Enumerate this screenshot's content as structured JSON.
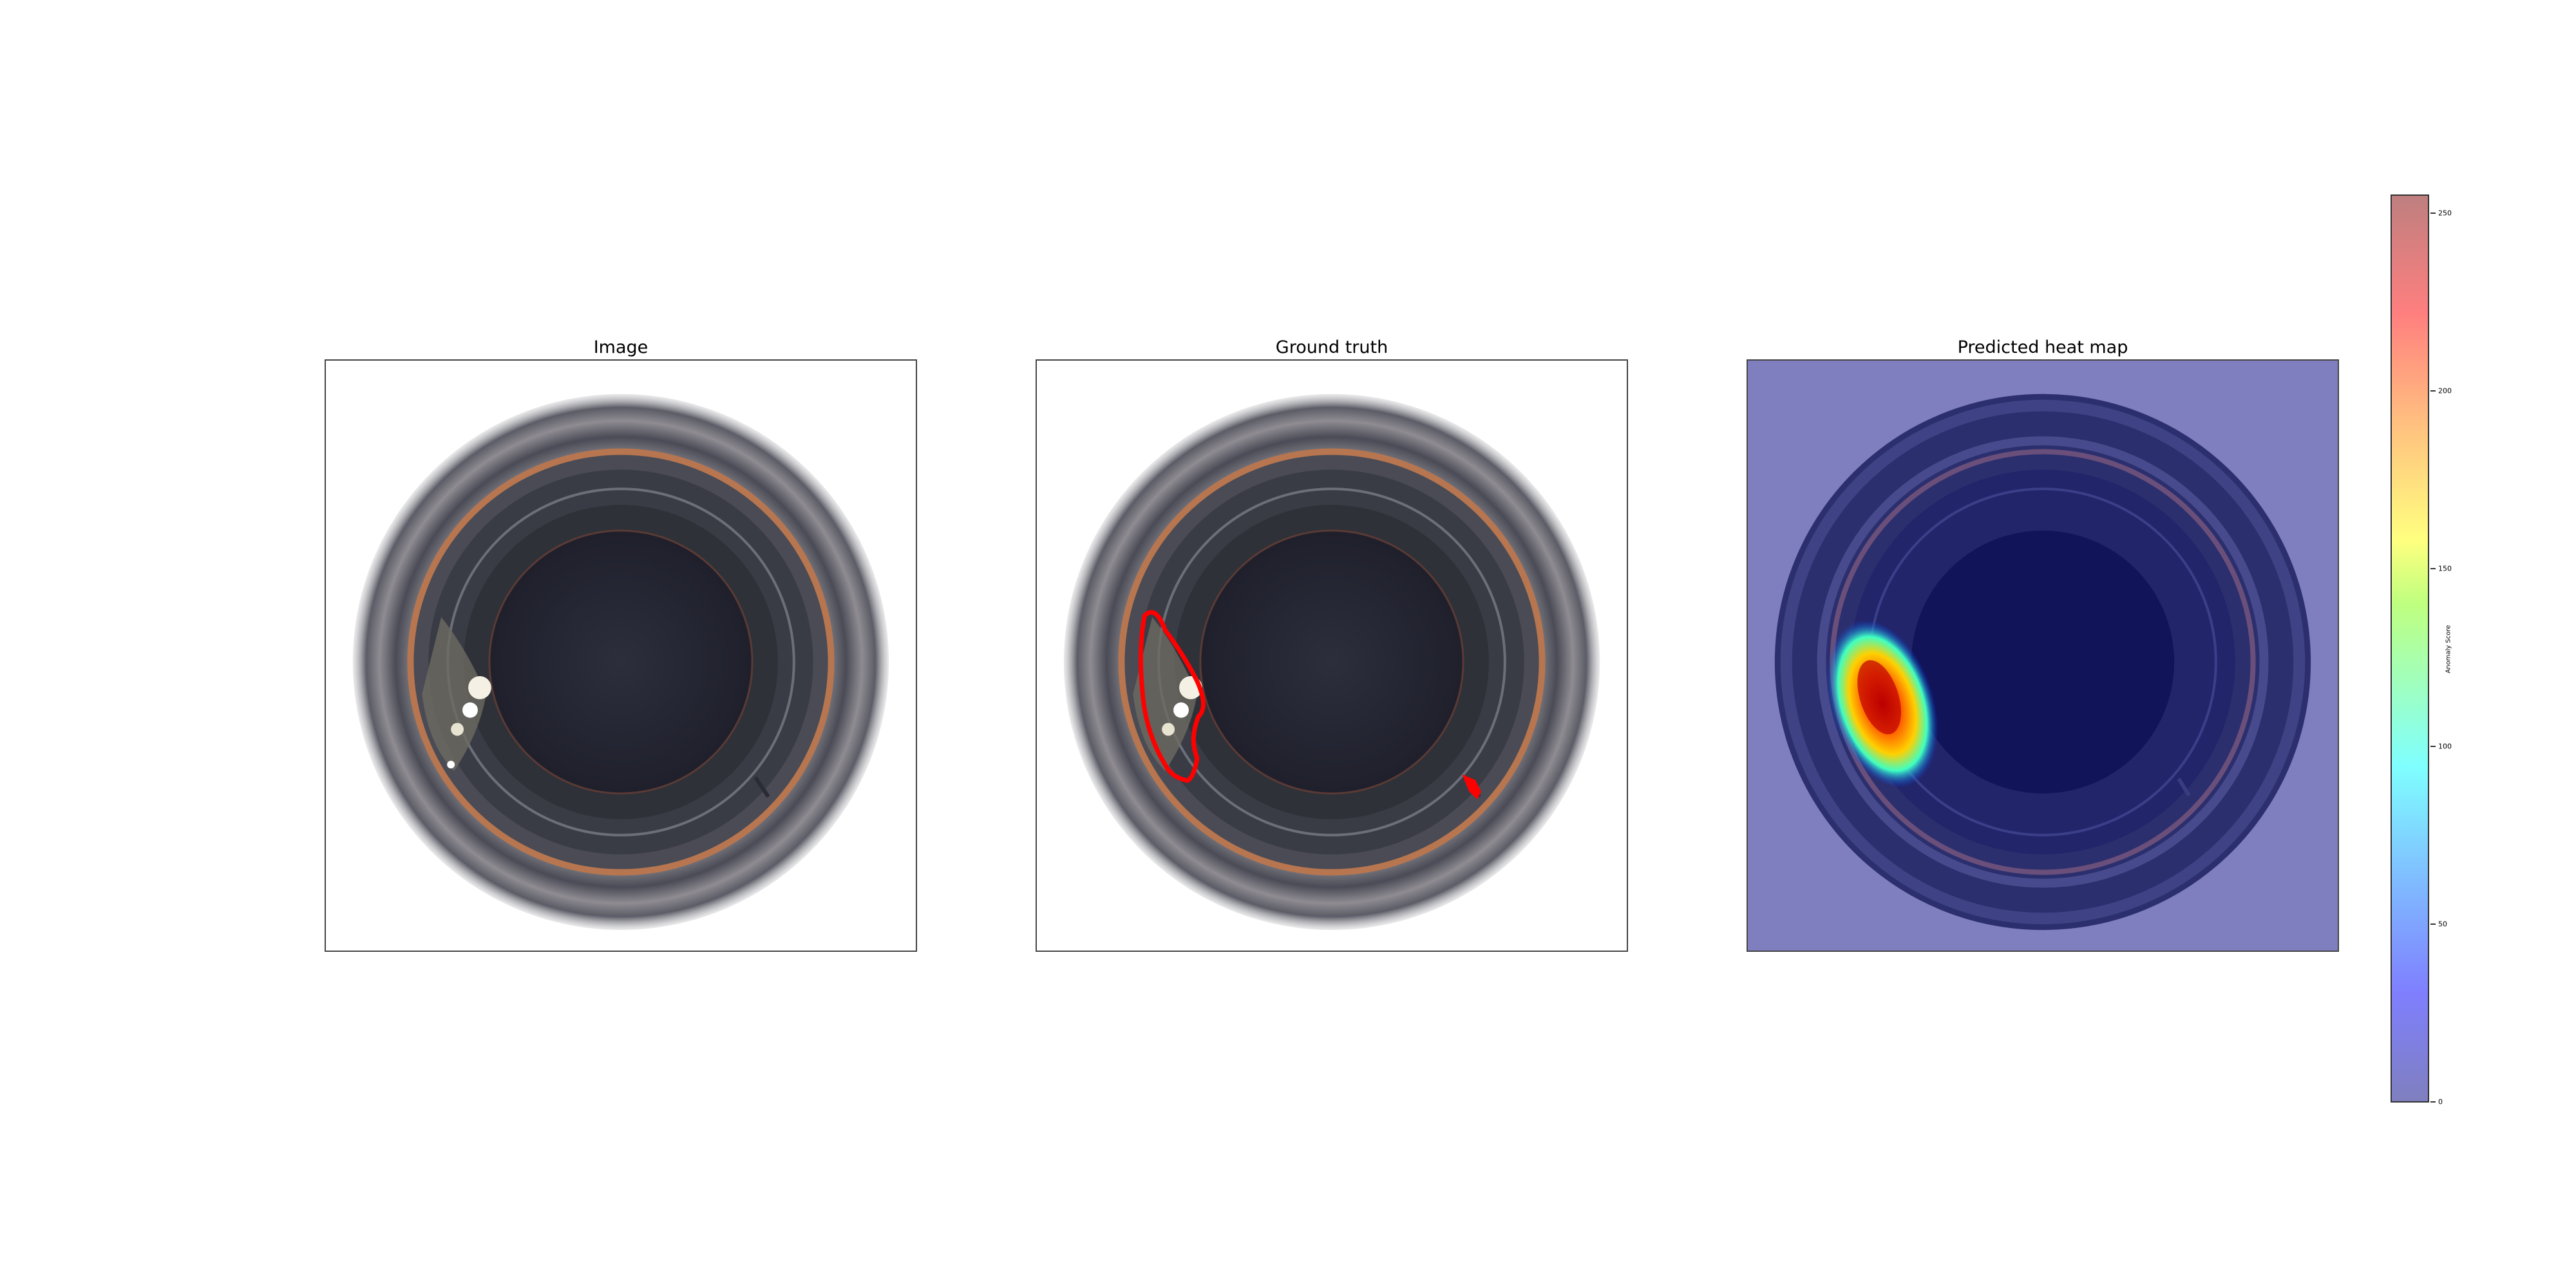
{
  "panels": [
    {
      "title": "Image"
    },
    {
      "title": "Ground truth"
    },
    {
      "title": "Predicted heat map"
    }
  ],
  "colorbar": {
    "label": "Anomaly Score",
    "ticks": [
      "0",
      "50",
      "100",
      "150",
      "200",
      "250"
    ],
    "range": [
      0,
      255
    ],
    "colormap": "jet"
  },
  "colors": {
    "ground_truth_outline": "#ff0000",
    "heatmap_background": "#7f7fbf"
  }
}
